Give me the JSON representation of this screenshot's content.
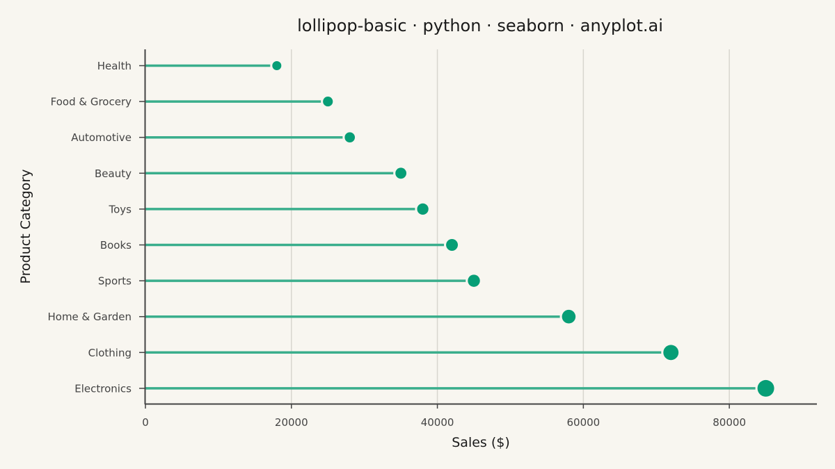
{
  "chart_data": {
    "type": "lollipop",
    "orientation": "horizontal",
    "title": "lollipop-basic · python · seaborn · anyplot.ai",
    "xlabel": "Sales ($)",
    "ylabel": "Product Category",
    "categories": [
      "Health",
      "Food & Grocery",
      "Automotive",
      "Beauty",
      "Toys",
      "Books",
      "Sports",
      "Home & Garden",
      "Clothing",
      "Electronics"
    ],
    "values": [
      18000,
      25000,
      28000,
      35000,
      38000,
      42000,
      45000,
      58000,
      72000,
      85000
    ],
    "xlim": [
      0,
      92000
    ],
    "xticks": [
      0,
      20000,
      40000,
      60000,
      80000
    ],
    "xtick_labels": [
      "0",
      "20000",
      "40000",
      "60000",
      "80000"
    ],
    "grid": "vertical",
    "legend": "none",
    "marker_size_encodes": "value",
    "colors": {
      "background": "#f8f6f0",
      "stem": "#3aae8c",
      "marker": "#079e76",
      "grid": "#d8d6cf",
      "axis": "#444444",
      "text": "#1a1a1a"
    }
  }
}
